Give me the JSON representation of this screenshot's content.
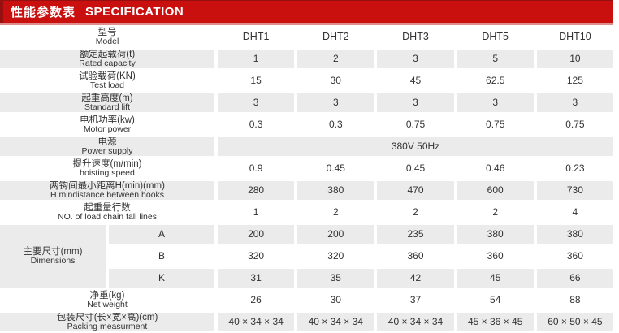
{
  "header": {
    "title_zh": "性能参数表",
    "title_en": "SPECIFICATION"
  },
  "colors": {
    "header_red": "#c9100e",
    "header_red_dark": "#971011",
    "header_underline_pink": "#df8e8e",
    "row_shade_gray": "#ebebeb",
    "text_dark": "#333333",
    "header_text_white": "#ffffff"
  },
  "table": {
    "model_label": {
      "zh": "型号",
      "en": "Model"
    },
    "columns": [
      "DHT1",
      "DHT2",
      "DHT3",
      "DHT5",
      "DHT10"
    ],
    "rows": [
      {
        "id": "rated-capacity",
        "label_zh": "额定起载荷(t)",
        "label_en": "Rated capacity",
        "values": [
          "1",
          "2",
          "3",
          "5",
          "10"
        ],
        "shaded": true
      },
      {
        "id": "test-load",
        "label_zh": "试验载荷(KN)",
        "label_en": "Test load",
        "values": [
          "15",
          "30",
          "45",
          "62.5",
          "125"
        ],
        "shaded": false
      },
      {
        "id": "standard-lift",
        "label_zh": "起重高度(m)",
        "label_en": "Standard lift",
        "values": [
          "3",
          "3",
          "3",
          "3",
          "3"
        ],
        "shaded": true
      },
      {
        "id": "motor-power",
        "label_zh": "电机功率(kw)",
        "label_en": "Motor power",
        "values": [
          "0.3",
          "0.3",
          "0.75",
          "0.75",
          "0.75"
        ],
        "shaded": false
      },
      {
        "id": "power-supply",
        "label_zh": "电源",
        "label_en": "Power supply",
        "merged_value": "380V  50Hz",
        "shaded": true
      },
      {
        "id": "hoisting-speed",
        "label_zh": "提升速度(m/min)",
        "label_en": "hoisting speed",
        "values": [
          "0.9",
          "0.45",
          "0.45",
          "0.46",
          "0.23"
        ],
        "shaded": false
      },
      {
        "id": "min-distance-between-hooks",
        "label_zh": "两钩间最小距离H(min)(mm)",
        "label_en": "H.mindistance between hooks",
        "values": [
          "280",
          "380",
          "470",
          "600",
          "730"
        ],
        "shaded": true
      },
      {
        "id": "load-chain-fall-lines",
        "label_zh": "起重量行数",
        "label_en": "NO. of load chain fall lines",
        "values": [
          "1",
          "2",
          "2",
          "2",
          "4"
        ],
        "shaded": false
      }
    ],
    "dimensions": {
      "label_zh": "主要尺寸(mm)",
      "label_en": "Dimensions",
      "sub_rows": [
        {
          "key": "A",
          "values": [
            "200",
            "200",
            "235",
            "380",
            "380"
          ],
          "shaded": true
        },
        {
          "key": "B",
          "values": [
            "320",
            "320",
            "360",
            "360",
            "360"
          ],
          "shaded": false
        },
        {
          "key": "K",
          "values": [
            "31",
            "35",
            "42",
            "45",
            "66"
          ],
          "shaded": true
        }
      ]
    },
    "bottom_rows": [
      {
        "id": "net-weight",
        "label_zh": "净重(kg)",
        "label_en": "Net weight",
        "values": [
          "26",
          "30",
          "37",
          "54",
          "88"
        ],
        "shaded": false
      },
      {
        "id": "packing-measurement",
        "label_zh": "包装尺寸(长×宽×高)(cm)",
        "label_en": "Packing measurment",
        "values": [
          "40 × 34 × 34",
          "40 × 34 × 34",
          "40 × 34 × 34",
          "45 × 36 × 45",
          "60 × 50 × 45"
        ],
        "shaded": true
      }
    ]
  }
}
